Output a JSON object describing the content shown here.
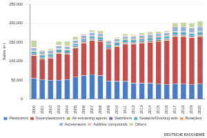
{
  "chart_data": {
    "type": "bar",
    "stacked": true,
    "grid": true,
    "legend": "bottom",
    "y_label": "Sales in t",
    "annotations": [
      "DEUTSCHE BAUCHEMIE"
    ],
    "categories": [
      "2000",
      "2001",
      "2002",
      "2003",
      "2004",
      "2005",
      "2006",
      "2007",
      "2008",
      "2009",
      "2010",
      "2011",
      "2012",
      "2013",
      "2014",
      "2015",
      "2016",
      "2017",
      "2018",
      "2019",
      "2020"
    ],
    "ylim": [
      0,
      250000
    ],
    "yticks": [
      0,
      {
        "value": 50000,
        "label": "50,000"
      },
      {
        "value": 100000,
        "label": "100,000"
      },
      {
        "value": 150000,
        "label": "150,000"
      },
      {
        "value": 200000,
        "label": "200,000"
      },
      {
        "value": 250000,
        "label": "250,000"
      }
    ],
    "series": [
      {
        "name": "Plasticizers",
        "color": "#4a7bc4",
        "values": [
          55000,
          52000,
          50000,
          50000,
          52000,
          58000,
          62000,
          65000,
          62000,
          48000,
          47000,
          47000,
          42000,
          42000,
          42000,
          40000,
          38000,
          40000,
          40000,
          38000,
          40000
        ]
      },
      {
        "name": "Superplasticizers",
        "color": "#c0504d",
        "values": [
          60000,
          53000,
          58000,
          70000,
          66000,
          77000,
          86000,
          90000,
          90000,
          84000,
          91000,
          98000,
          103000,
          106000,
          108000,
          112000,
          117000,
          125000,
          125000,
          124000,
          125000
        ]
      },
      {
        "name": "Air-entraining agents",
        "color": "#9bbb59",
        "values": [
          2000,
          2000,
          2000,
          2000,
          2000,
          2000,
          2000,
          2000,
          2000,
          2000,
          2000,
          2000,
          2000,
          2000,
          2000,
          2000,
          2000,
          2000,
          2000,
          2000,
          2000
        ]
      },
      {
        "name": "Stabilizers",
        "color": "#8064a2",
        "values": [
          3000,
          3000,
          3000,
          3000,
          3000,
          3000,
          3000,
          3000,
          3000,
          3000,
          3000,
          3000,
          3000,
          3000,
          3000,
          3000,
          3000,
          3000,
          3000,
          3000,
          3000
        ]
      },
      {
        "name": "Sealants/Grouting aids",
        "color": "#4bacc6",
        "values": [
          6000,
          6000,
          6000,
          6000,
          6000,
          6000,
          6000,
          6000,
          6000,
          6000,
          6000,
          6000,
          6000,
          6000,
          6000,
          6000,
          6000,
          6000,
          6000,
          6000,
          6000
        ]
      },
      {
        "name": "Retarders",
        "color": "#f79646",
        "values": [
          2000,
          2000,
          2000,
          2000,
          2000,
          2000,
          2000,
          2000,
          2000,
          2000,
          2000,
          2000,
          2000,
          2000,
          2000,
          2000,
          2000,
          2000,
          2000,
          2000,
          2000
        ]
      },
      {
        "name": "Accelerators",
        "color": "#95b3d7",
        "values": [
          7000,
          7000,
          7000,
          7000,
          7000,
          7000,
          7000,
          7000,
          7000,
          7000,
          7000,
          7000,
          7000,
          7000,
          7000,
          7000,
          7000,
          12000,
          12000,
          12000,
          12000
        ]
      },
      {
        "name": "Additive compounds",
        "color": "#e6b9b8",
        "values": [
          2000,
          2000,
          2000,
          2000,
          2000,
          2000,
          2000,
          2000,
          2000,
          2000,
          2000,
          2000,
          2000,
          2000,
          2000,
          2000,
          2000,
          2000,
          2000,
          2000,
          2000
        ]
      },
      {
        "name": "Others",
        "color": "#c3d69b",
        "values": [
          18000,
          3000,
          3000,
          10000,
          12000,
          8000,
          2000,
          5000,
          6000,
          1000,
          3000,
          5000,
          3000,
          5000,
          5000,
          4000,
          3000,
          8000,
          10000,
          11000,
          13000
        ]
      }
    ]
  }
}
